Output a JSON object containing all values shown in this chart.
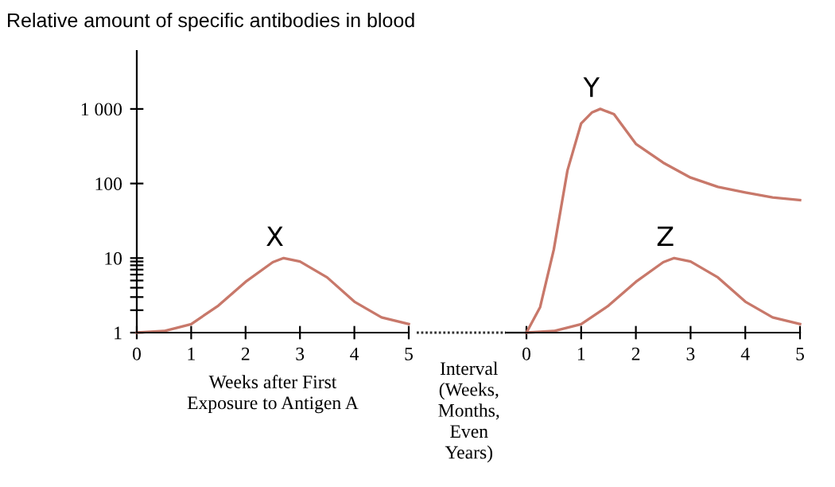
{
  "chart_data": [
    {
      "type": "line",
      "title": "Relative amount of specific antibodies in blood",
      "xlabel": "Weeks after First\nExposure to Antigen A",
      "log": "y",
      "xlim": [
        0,
        5
      ],
      "xticks": [
        0,
        1,
        2,
        3,
        4,
        5
      ],
      "ylim": [
        1,
        6000
      ],
      "yticks": [
        1,
        {
          "value": 2,
          "label": null
        },
        {
          "value": 3,
          "label": null
        },
        {
          "value": 4,
          "label": null
        },
        {
          "value": 5,
          "label": null
        },
        {
          "value": 6,
          "label": null
        },
        {
          "value": 7,
          "label": null
        },
        {
          "value": 8,
          "label": null
        },
        {
          "value": 9,
          "label": null
        },
        10,
        100,
        {
          "value": 1000,
          "label": "1 000"
        }
      ],
      "grid": false,
      "legend": false,
      "series": [
        {
          "name": "X",
          "color": "#c8786a",
          "x": [
            0,
            0.5,
            1,
            1.5,
            2,
            2.5,
            2.7,
            3,
            3.5,
            4,
            4.5,
            5
          ],
          "values": [
            1,
            1.05,
            1.3,
            2.3,
            4.8,
            8.8,
            10,
            9,
            5.5,
            2.6,
            1.6,
            1.3
          ]
        }
      ]
    },
    {
      "type": "line",
      "xlim": [
        0,
        5
      ],
      "xticks": [
        0,
        1,
        2,
        3,
        4,
        5
      ],
      "log": "y",
      "ylim": [
        1,
        1000
      ],
      "yticks": [
        1,
        10,
        100,
        1000
      ],
      "tick_labels": "x",
      "grid": false,
      "legend": false,
      "annotations": [
        "Interval\n(Weeks,\nMonths,\nEven\nYears)"
      ],
      "series": [
        {
          "name": "Y",
          "color": "#c8786a",
          "x": [
            0,
            0.25,
            0.5,
            0.75,
            1,
            1.2,
            1.35,
            1.6,
            2,
            2.5,
            3,
            3.5,
            4,
            4.5,
            5
          ],
          "values": [
            1,
            2.2,
            13,
            150,
            640,
            900,
            1000,
            850,
            340,
            190,
            120,
            90,
            76,
            65,
            60
          ]
        },
        {
          "name": "Z",
          "color": "#c8786a",
          "x": [
            0,
            0.5,
            1,
            1.5,
            2,
            2.5,
            2.7,
            3,
            3.5,
            4,
            4.5,
            5
          ],
          "values": [
            1,
            1.05,
            1.3,
            2.3,
            4.8,
            8.8,
            10,
            9,
            5.5,
            2.6,
            1.6,
            1.3
          ]
        }
      ]
    }
  ]
}
